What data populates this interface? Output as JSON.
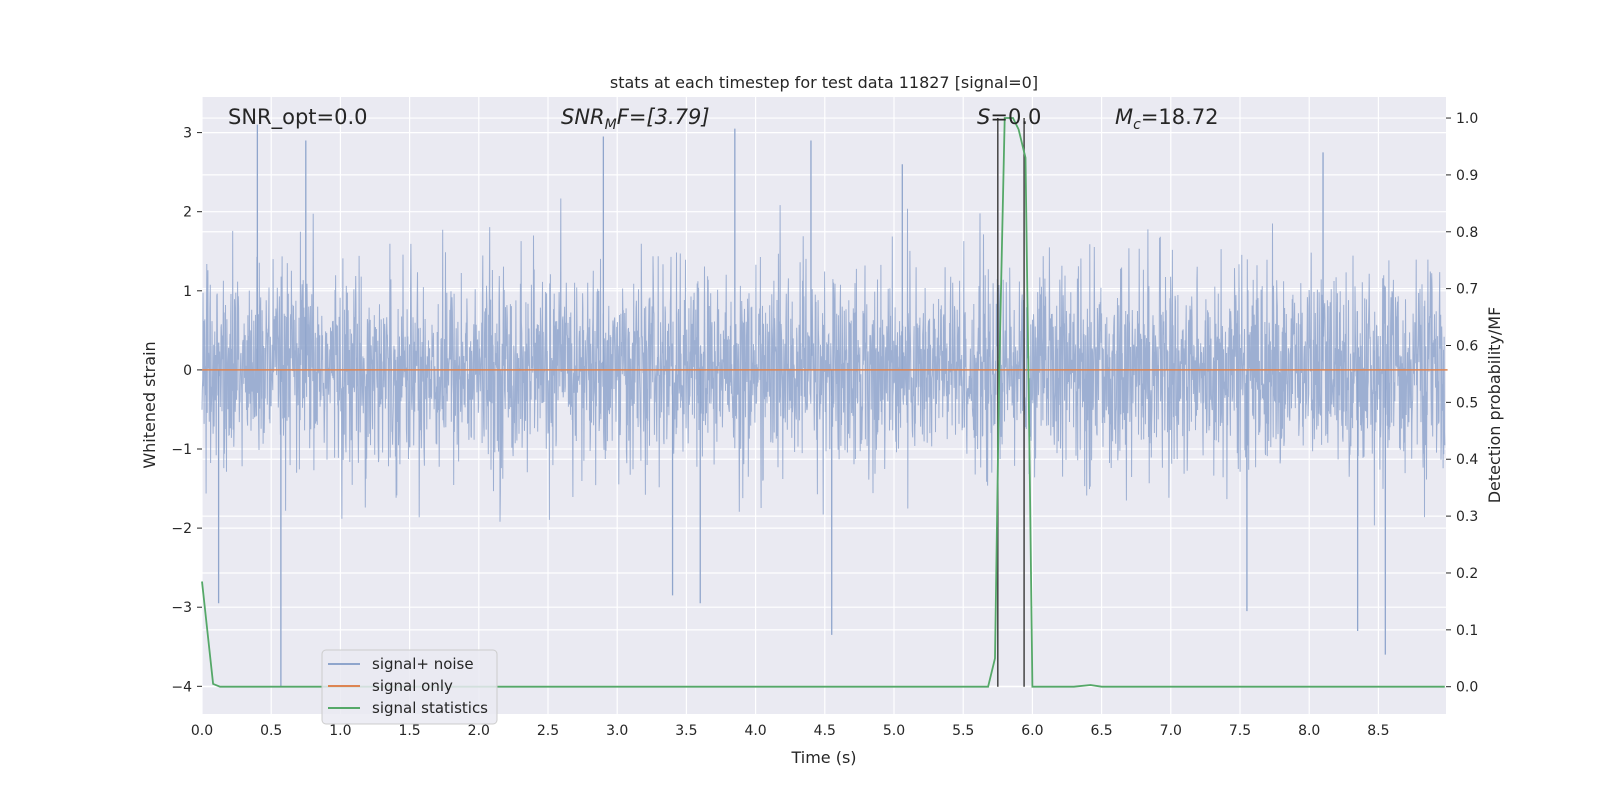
{
  "chart_data": {
    "type": "line",
    "title": "stats at each timestep for test data 11827 [signal=0]",
    "xlabel": "Time (s)",
    "ylabel": "Whitened strain",
    "y2label": "Detection probability/MF",
    "xlim": [
      0,
      9.0
    ],
    "ylim": [
      -4.35,
      3.45
    ],
    "y2lim": [
      -0.048,
      1.037
    ],
    "x_ticks": [
      "0.0",
      "0.5",
      "1.0",
      "1.5",
      "2.0",
      "2.5",
      "3.0",
      "3.5",
      "4.0",
      "4.5",
      "5.0",
      "5.5",
      "6.0",
      "6.5",
      "7.0",
      "7.5",
      "8.0",
      "8.5"
    ],
    "y_ticks": [
      "3",
      "2",
      "1",
      "0",
      "−1",
      "−2",
      "−3",
      "−4"
    ],
    "y2_ticks": [
      "1.0",
      "0.9",
      "0.8",
      "0.7",
      "0.6",
      "0.5",
      "0.4",
      "0.3",
      "0.2",
      "0.1",
      "0.0"
    ],
    "grid": true,
    "legend_position": "lower-left",
    "annotations": {
      "snr_opt": "SNR_opt=0.0",
      "snr_mf_main": "SNR",
      "snr_mf_sub": "M",
      "snr_mf_rest": "F=[3.79]",
      "s_main": "S",
      "s_rest": "=0.0",
      "mc_main": "M",
      "mc_sub": "c",
      "mc_rest": "=18.72"
    },
    "markers_x": [
      5.75,
      5.94
    ],
    "series": [
      {
        "name": "signal+ noise",
        "color": "#8fa5cc",
        "description": "whitened noise, approx. +/-1.5 std band with spikes",
        "spikes": [
          {
            "x": 0.4,
            "y": 3.1
          },
          {
            "x": 0.75,
            "y": 2.9
          },
          {
            "x": 2.9,
            "y": 2.95
          },
          {
            "x": 3.85,
            "y": 3.05
          },
          {
            "x": 4.4,
            "y": 2.9
          },
          {
            "x": 5.06,
            "y": 2.6
          },
          {
            "x": 8.1,
            "y": 2.75
          },
          {
            "x": 0.57,
            "y": -4.0
          },
          {
            "x": 0.12,
            "y": -2.95
          },
          {
            "x": 4.55,
            "y": -3.35
          },
          {
            "x": 3.6,
            "y": -2.95
          },
          {
            "x": 7.55,
            "y": -3.05
          },
          {
            "x": 8.35,
            "y": -3.3
          },
          {
            "x": 8.55,
            "y": -3.6
          },
          {
            "x": 3.4,
            "y": -2.85
          }
        ]
      },
      {
        "name": "signal only",
        "color": "#dd8452",
        "x": [
          0,
          9.0
        ],
        "y": [
          0,
          0
        ]
      },
      {
        "name": "signal statistics",
        "color": "#55a868",
        "axis": "right",
        "x": [
          0.0,
          0.08,
          0.13,
          0.5,
          1.0,
          2.0,
          3.0,
          4.0,
          5.0,
          5.68,
          5.73,
          5.76,
          5.8,
          5.86,
          5.9,
          5.95,
          5.98,
          6.0,
          6.3,
          6.42,
          6.5,
          7.0,
          8.0,
          8.98
        ],
        "y": [
          0.185,
          0.005,
          0.0,
          0.0,
          0.0,
          0.0,
          0.0,
          0.0,
          0.0,
          0.0,
          0.05,
          0.55,
          1.0,
          1.0,
          0.98,
          0.93,
          0.4,
          0.0,
          0.0,
          0.003,
          0.0,
          0.0,
          0.0,
          0.0
        ]
      }
    ]
  }
}
